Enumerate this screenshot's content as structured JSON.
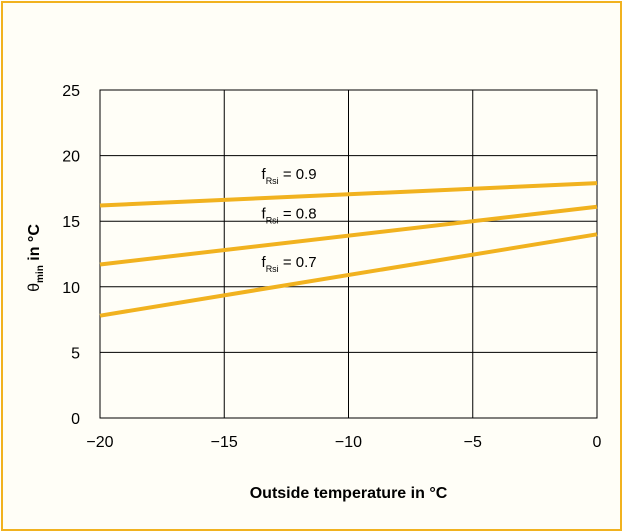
{
  "chart_data": {
    "type": "line",
    "xlabel": "Outside temperature in °C",
    "ylabel": {
      "main": "θ",
      "sub": "min",
      "rest": " in °C"
    },
    "xlim": [
      -20,
      0
    ],
    "ylim": [
      0,
      25
    ],
    "x_ticks": [
      "−20",
      "−15",
      "−10",
      "−5",
      "0"
    ],
    "x_tick_values": [
      -20,
      -15,
      -10,
      -5,
      0
    ],
    "y_ticks": [
      "0",
      "5",
      "10",
      "15",
      "20",
      "25"
    ],
    "y_tick_values": [
      0,
      5,
      10,
      15,
      20,
      25
    ],
    "grid": true,
    "series": [
      {
        "name": "f_Rsi = 0.9",
        "label": {
          "pre": "f",
          "sub": "Rsi",
          "post": " = 0.9"
        },
        "x": [
          -20,
          0
        ],
        "y": [
          16.2,
          17.9
        ],
        "label_at": [
          -13.5,
          18.2
        ]
      },
      {
        "name": "f_Rsi = 0.8",
        "label": {
          "pre": "f",
          "sub": "Rsi",
          "post": " = 0.8"
        },
        "x": [
          -20,
          0
        ],
        "y": [
          11.7,
          16.1
        ],
        "label_at": [
          -13.5,
          15.2
        ]
      },
      {
        "name": "f_Rsi = 0.7",
        "label": {
          "pre": "f",
          "sub": "Rsi",
          "post": " = 0.7"
        },
        "x": [
          -20,
          0
        ],
        "y": [
          7.8,
          14.0
        ],
        "label_at": [
          -13.5,
          11.5
        ]
      }
    ],
    "colors": {
      "line": "#f1b21f",
      "grid": "#000000",
      "frame": "#f1b21f"
    }
  }
}
